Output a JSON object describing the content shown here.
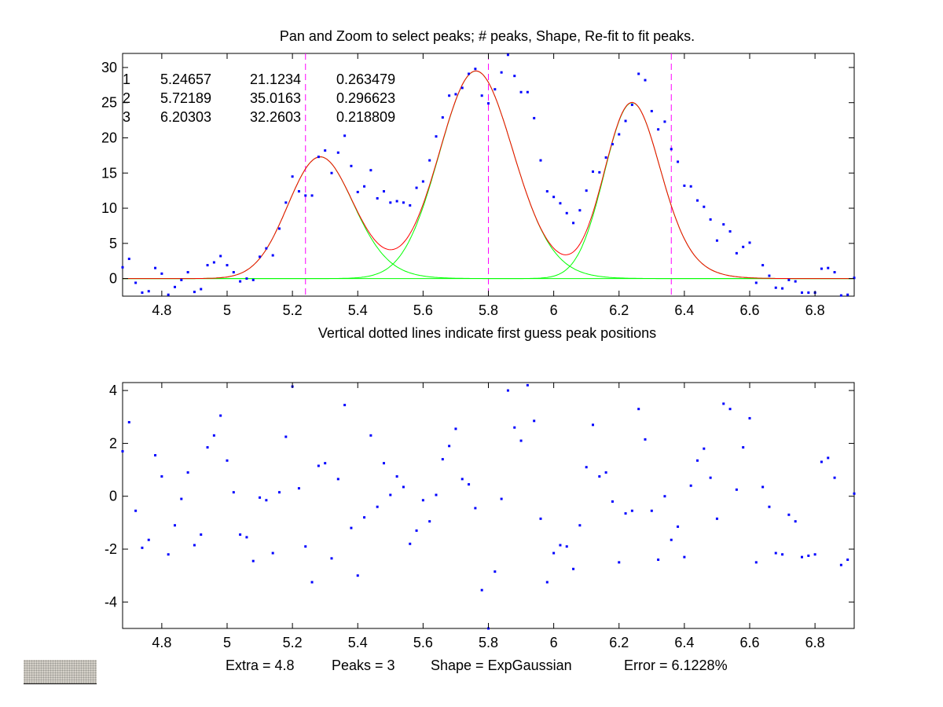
{
  "title": "Pan and Zoom to select peaks; # peaks, Shape, Re-fit to fit peaks.",
  "upper_xlabel": "Vertical dotted lines indicate first guess peak positions",
  "status": {
    "extra": "Extra = 4.8",
    "peaks": "Peaks = 3",
    "shape": "Shape = ExpGaussian",
    "error": "Error = 6.1228%"
  },
  "colors": {
    "points": "#0000ff",
    "fit": "#ff0000",
    "components": "#00ff00",
    "guess_lines": "#ff00ff",
    "axes": "#000000",
    "widget": "#d4d0c8"
  },
  "peak_table": [
    [
      "1",
      "5.24657",
      "21.1234",
      "0.263479"
    ],
    [
      "2",
      "5.72189",
      "35.0163",
      "0.296623"
    ],
    [
      "3",
      "6.20303",
      "32.2603",
      "0.218809"
    ]
  ],
  "chart_data": [
    {
      "type": "scatter",
      "xlim": [
        4.68,
        6.92
      ],
      "ylim": [
        -2.5,
        32
      ],
      "xticks": [
        4.8,
        5,
        5.2,
        5.4,
        5.6,
        5.8,
        6,
        6.2,
        6.4,
        6.6,
        6.8
      ],
      "xtick_labels": [
        "4.8",
        "5",
        "5.2",
        "5.4",
        "5.6",
        "5.8",
        "6",
        "6.2",
        "6.4",
        "6.6",
        "6.8"
      ],
      "yticks": [
        0,
        5,
        10,
        15,
        20,
        25,
        30
      ],
      "ytick_labels": [
        "0",
        "5",
        "10",
        "15",
        "20",
        "25",
        "30"
      ],
      "grid": false,
      "guess_positions": [
        5.24,
        5.8,
        6.36
      ],
      "points": [
        [
          4.68,
          1.6
        ],
        [
          4.7,
          2.8
        ],
        [
          4.72,
          -0.6
        ],
        [
          4.74,
          -2.0
        ],
        [
          4.76,
          -1.8
        ],
        [
          4.78,
          1.5
        ],
        [
          4.8,
          0.7
        ],
        [
          4.82,
          -2.3
        ],
        [
          4.84,
          -1.2
        ],
        [
          4.86,
          -0.2
        ],
        [
          4.88,
          0.9
        ],
        [
          4.9,
          -1.9
        ],
        [
          4.92,
          -1.5
        ],
        [
          4.94,
          1.9
        ],
        [
          4.96,
          2.3
        ],
        [
          4.98,
          3.2
        ],
        [
          5.0,
          1.9
        ],
        [
          5.02,
          0.9
        ],
        [
          5.04,
          -0.4
        ],
        [
          5.06,
          0.0
        ],
        [
          5.08,
          -0.2
        ],
        [
          5.1,
          3.1
        ],
        [
          5.12,
          4.3
        ],
        [
          5.14,
          3.3
        ],
        [
          5.16,
          7.1
        ],
        [
          5.18,
          10.8
        ],
        [
          5.2,
          14.5
        ],
        [
          5.22,
          12.4
        ],
        [
          5.24,
          11.8
        ],
        [
          5.26,
          11.8
        ],
        [
          5.28,
          17.3
        ],
        [
          5.3,
          18.2
        ],
        [
          5.32,
          15.0
        ],
        [
          5.34,
          17.9
        ],
        [
          5.36,
          20.3
        ],
        [
          5.38,
          16.0
        ],
        [
          5.4,
          12.3
        ],
        [
          5.42,
          13.1
        ],
        [
          5.44,
          15.4
        ],
        [
          5.46,
          11.4
        ],
        [
          5.48,
          12.4
        ],
        [
          5.5,
          10.8
        ],
        [
          5.52,
          11.0
        ],
        [
          5.54,
          10.8
        ],
        [
          5.56,
          10.4
        ],
        [
          5.58,
          12.9
        ],
        [
          5.6,
          13.8
        ],
        [
          5.62,
          16.8
        ],
        [
          5.64,
          20.2
        ],
        [
          5.66,
          22.9
        ],
        [
          5.68,
          26.0
        ],
        [
          5.7,
          26.2
        ],
        [
          5.72,
          27.1
        ],
        [
          5.74,
          29.1
        ],
        [
          5.76,
          29.8
        ],
        [
          5.78,
          26.0
        ],
        [
          5.8,
          24.9
        ],
        [
          5.82,
          26.9
        ],
        [
          5.84,
          29.3
        ],
        [
          5.86,
          31.8
        ],
        [
          5.88,
          28.8
        ],
        [
          5.9,
          26.5
        ],
        [
          5.92,
          26.5
        ],
        [
          5.94,
          22.8
        ],
        [
          5.96,
          16.8
        ],
        [
          5.98,
          12.4
        ],
        [
          6.0,
          11.6
        ],
        [
          6.02,
          10.7
        ],
        [
          6.04,
          9.3
        ],
        [
          6.06,
          7.9
        ],
        [
          6.08,
          9.7
        ],
        [
          6.1,
          12.5
        ],
        [
          6.12,
          15.2
        ],
        [
          6.14,
          15.1
        ],
        [
          6.16,
          17.2
        ],
        [
          6.18,
          19.1
        ],
        [
          6.2,
          20.5
        ],
        [
          6.22,
          22.4
        ],
        [
          6.24,
          24.7
        ],
        [
          6.26,
          29.1
        ],
        [
          6.28,
          28.2
        ],
        [
          6.3,
          23.8
        ],
        [
          6.32,
          21.2
        ],
        [
          6.34,
          22.3
        ],
        [
          6.36,
          18.4
        ],
        [
          6.38,
          16.6
        ],
        [
          6.4,
          13.2
        ],
        [
          6.42,
          13.1
        ],
        [
          6.44,
          11.1
        ],
        [
          6.46,
          10.2
        ],
        [
          6.48,
          8.4
        ],
        [
          6.5,
          5.4
        ],
        [
          6.52,
          7.7
        ],
        [
          6.54,
          6.7
        ],
        [
          6.56,
          3.6
        ],
        [
          6.58,
          4.5
        ],
        [
          6.6,
          5.1
        ],
        [
          6.62,
          -0.6
        ],
        [
          6.64,
          1.9
        ],
        [
          6.66,
          0.4
        ],
        [
          6.68,
          -1.3
        ],
        [
          6.7,
          -1.4
        ],
        [
          6.72,
          -0.2
        ],
        [
          6.74,
          -0.4
        ],
        [
          6.76,
          -2.0
        ],
        [
          6.78,
          -2.0
        ],
        [
          6.8,
          -2.0
        ],
        [
          6.82,
          1.4
        ],
        [
          6.84,
          1.5
        ],
        [
          6.86,
          0.9
        ],
        [
          6.88,
          -2.4
        ],
        [
          6.9,
          -2.3
        ],
        [
          6.92,
          0.1
        ]
      ],
      "components": [
        {
          "kind": "expgaussian",
          "center": 5.24657,
          "height": 17.3,
          "sigma": 0.092,
          "tau": 0.05
        },
        {
          "kind": "expgaussian",
          "center": 5.72189,
          "height": 29.5,
          "sigma": 0.105,
          "tau": 0.05
        },
        {
          "kind": "expgaussian",
          "center": 6.20303,
          "height": 25.0,
          "sigma": 0.077,
          "tau": 0.05
        }
      ]
    },
    {
      "type": "scatter",
      "xlim": [
        4.68,
        6.92
      ],
      "ylim": [
        -5,
        4.3
      ],
      "xticks": [
        4.8,
        5,
        5.2,
        5.4,
        5.6,
        5.8,
        6,
        6.2,
        6.4,
        6.6,
        6.8
      ],
      "xtick_labels": [
        "4.8",
        "5",
        "5.2",
        "5.4",
        "5.6",
        "5.8",
        "6",
        "6.2",
        "6.4",
        "6.6",
        "6.8"
      ],
      "yticks": [
        -4,
        -2,
        0,
        2,
        4
      ],
      "ytick_labels": [
        "-4",
        "-2",
        "0",
        "2",
        "4"
      ],
      "grid": false,
      "points": [
        [
          4.68,
          1.7
        ],
        [
          4.7,
          2.8
        ],
        [
          4.72,
          -0.55
        ],
        [
          4.74,
          -1.95
        ],
        [
          4.76,
          -1.65
        ],
        [
          4.78,
          1.55
        ],
        [
          4.8,
          0.75
        ],
        [
          4.82,
          -2.2
        ],
        [
          4.84,
          -1.1
        ],
        [
          4.86,
          -0.1
        ],
        [
          4.88,
          0.9
        ],
        [
          4.9,
          -1.85
        ],
        [
          4.92,
          -1.45
        ],
        [
          4.94,
          1.85
        ],
        [
          4.96,
          2.3
        ],
        [
          4.98,
          3.05
        ],
        [
          5.0,
          1.35
        ],
        [
          5.02,
          0.15
        ],
        [
          5.04,
          -1.45
        ],
        [
          5.06,
          -1.55
        ],
        [
          5.08,
          -2.45
        ],
        [
          5.1,
          -0.05
        ],
        [
          5.12,
          -0.15
        ],
        [
          5.14,
          -2.15
        ],
        [
          5.16,
          0.15
        ],
        [
          5.18,
          2.25
        ],
        [
          5.2,
          4.15
        ],
        [
          5.22,
          0.3
        ],
        [
          5.24,
          -1.9
        ],
        [
          5.26,
          -3.25
        ],
        [
          5.28,
          1.15
        ],
        [
          5.3,
          1.25
        ],
        [
          5.32,
          -2.35
        ],
        [
          5.34,
          0.65
        ],
        [
          5.36,
          3.45
        ],
        [
          5.38,
          -1.2
        ],
        [
          5.4,
          -3.0
        ],
        [
          5.42,
          -0.8
        ],
        [
          5.44,
          2.3
        ],
        [
          5.46,
          -0.4
        ],
        [
          5.48,
          1.25
        ],
        [
          5.5,
          0.05
        ],
        [
          5.52,
          0.75
        ],
        [
          5.54,
          0.35
        ],
        [
          5.56,
          -1.8
        ],
        [
          5.58,
          -1.3
        ],
        [
          5.6,
          -0.15
        ],
        [
          5.62,
          -0.95
        ],
        [
          5.64,
          0.05
        ],
        [
          5.66,
          1.4
        ],
        [
          5.68,
          1.9
        ],
        [
          5.7,
          2.55
        ],
        [
          5.72,
          0.65
        ],
        [
          5.74,
          0.45
        ],
        [
          5.76,
          -0.45
        ],
        [
          5.78,
          -3.55
        ],
        [
          5.8,
          -5.0
        ],
        [
          5.82,
          -2.85
        ],
        [
          5.84,
          -0.1
        ],
        [
          5.86,
          4.0
        ],
        [
          5.88,
          2.6
        ],
        [
          5.9,
          2.1
        ],
        [
          5.92,
          4.2
        ],
        [
          5.94,
          2.85
        ],
        [
          5.96,
          -0.85
        ],
        [
          5.98,
          -3.25
        ],
        [
          6.0,
          -2.15
        ],
        [
          6.02,
          -1.85
        ],
        [
          6.04,
          -1.9
        ],
        [
          6.06,
          -2.75
        ],
        [
          6.08,
          -1.1
        ],
        [
          6.1,
          1.1
        ],
        [
          6.12,
          2.7
        ],
        [
          6.14,
          0.75
        ],
        [
          6.16,
          0.9
        ],
        [
          6.18,
          -0.2
        ],
        [
          6.2,
          -2.5
        ],
        [
          6.22,
          -0.65
        ],
        [
          6.24,
          -0.55
        ],
        [
          6.26,
          3.3
        ],
        [
          6.28,
          2.15
        ],
        [
          6.3,
          -0.55
        ],
        [
          6.32,
          -2.4
        ],
        [
          6.34,
          0.0
        ],
        [
          6.36,
          -1.65
        ],
        [
          6.38,
          -1.15
        ],
        [
          6.4,
          -2.3
        ],
        [
          6.42,
          0.4
        ],
        [
          6.44,
          1.35
        ],
        [
          6.46,
          1.8
        ],
        [
          6.48,
          0.7
        ],
        [
          6.5,
          -0.85
        ],
        [
          6.52,
          3.5
        ],
        [
          6.54,
          3.3
        ],
        [
          6.56,
          0.25
        ],
        [
          6.58,
          1.85
        ],
        [
          6.6,
          2.95
        ],
        [
          6.62,
          -2.5
        ],
        [
          6.64,
          0.35
        ],
        [
          6.66,
          -0.4
        ],
        [
          6.68,
          -2.15
        ],
        [
          6.7,
          -2.2
        ],
        [
          6.72,
          -0.7
        ],
        [
          6.74,
          -0.95
        ],
        [
          6.76,
          -2.3
        ],
        [
          6.78,
          -2.25
        ],
        [
          6.8,
          -2.2
        ],
        [
          6.82,
          1.3
        ],
        [
          6.84,
          1.45
        ],
        [
          6.86,
          0.7
        ],
        [
          6.88,
          -2.6
        ],
        [
          6.9,
          -2.4
        ],
        [
          6.92,
          0.1
        ]
      ]
    }
  ]
}
